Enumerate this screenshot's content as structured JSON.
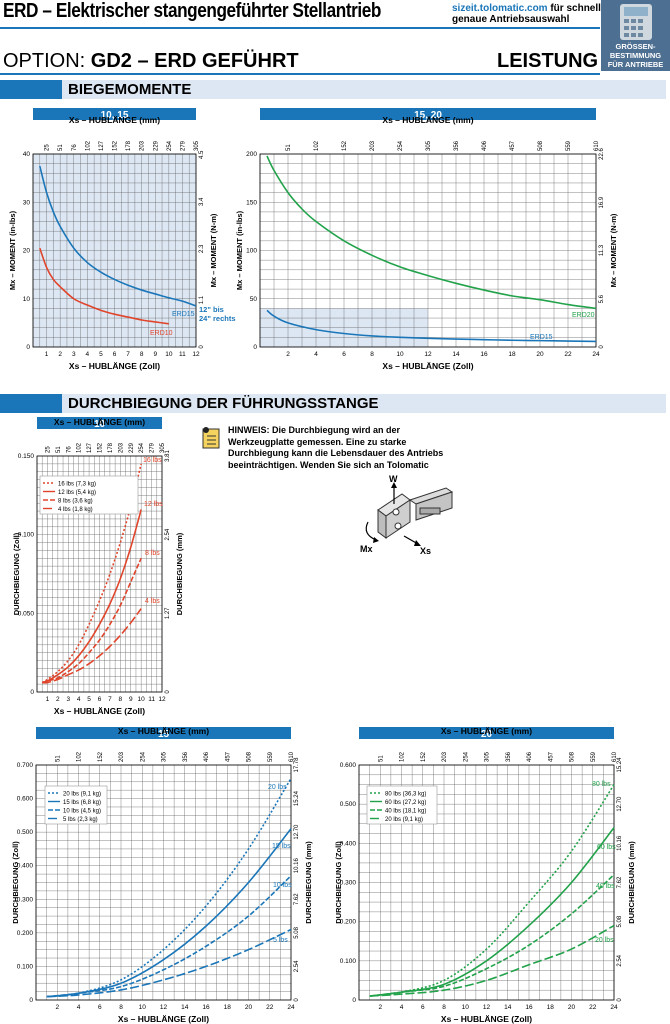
{
  "header": {
    "title": "ERD – Elektrischer stangengeführter Stellantrieb",
    "url": "sizeit.tolomatic.com",
    "url_suffix": " für schnelle,",
    "url_line2": "genaue Antriebsauswahl",
    "sizing_label": "GRÖSSEN-\nBESTIMMUNG\nFÜR ANTRIEBE",
    "option_prefix": "OPTION:",
    "option_name": "GD2 – ERD GEFÜHRT",
    "leistung": "LEISTUNG",
    "accent": "#1a76b8"
  },
  "sections": {
    "biegemomente": "BIEGEMOMENTE",
    "durchbiegung": "DURCHBIEGUNG DER FÜHRUNGSSTANGE"
  },
  "note": "HINWEIS: Die Durchbiegung wird an der Werkzeugplatte gemessen. Eine zu starke Durchbiegung kann die Lebensdauer des Antriebs beeinträchtigen. Wenden Sie sich an Tolomatic",
  "mech_labels": {
    "w": "W",
    "mx": "Mx",
    "xs": "Xs"
  },
  "chart_data": [
    {
      "type": "line",
      "banner": "10, 15",
      "xlabel": "Xs – HUBLÄNGE (Zoll)",
      "x2label": "Xs – HUBLÄNGE (mm)",
      "ylabel": "Mx – MOMENT (in-lbs)",
      "y2label": "Mx – MOMENT (N-m)",
      "xlim": [
        0,
        12
      ],
      "ylim": [
        0,
        40
      ],
      "xticks": [
        1,
        2,
        3,
        4,
        5,
        6,
        7,
        8,
        9,
        10,
        11,
        12
      ],
      "yticks": [
        0,
        10,
        20,
        30,
        40
      ],
      "x2ticks": [
        "25",
        "51",
        "76",
        "102",
        "127",
        "152",
        "178",
        "203",
        "229",
        "254",
        "279",
        "305"
      ],
      "y2ticks": [
        {
          "v": 0,
          "t": "0"
        },
        {
          "v": 9.72,
          "t": "1.1"
        },
        {
          "v": 20.35,
          "t": "2.3"
        },
        {
          "v": 30.09,
          "t": "3.4"
        },
        {
          "v": 39.82,
          "t": "4.5"
        }
      ],
      "shade": [
        0,
        12,
        0,
        40
      ],
      "annotation": "12\" bis\n24\" rechts",
      "series": [
        {
          "name": "ERD15",
          "color": "#1a76b8",
          "dash": "solid",
          "x": [
            0.5,
            1,
            1.5,
            2,
            3,
            4,
            5,
            6,
            7,
            8,
            9,
            10,
            11,
            12
          ],
          "values": [
            37.5,
            32,
            28,
            25,
            20.5,
            17.5,
            15.5,
            14,
            12.8,
            11.8,
            11,
            10.2,
            9.5,
            8.5
          ]
        },
        {
          "name": "ERD10",
          "color": "#e0452b",
          "dash": "solid",
          "x": [
            0.5,
            1,
            1.5,
            2,
            3,
            4,
            5,
            6,
            7,
            8,
            9,
            10
          ],
          "values": [
            20.5,
            16.5,
            14,
            12.5,
            10,
            8.7,
            7.6,
            6.8,
            6.2,
            5.6,
            5.2,
            4.8
          ]
        }
      ]
    },
    {
      "type": "line",
      "banner": "15, 20",
      "xlabel": "Xs – HUBLÄNGE (Zoll)",
      "x2label": "Xs – HUBLÄNGE (mm)",
      "ylabel": "Mx – MOMENT (in-lbs)",
      "y2label": "Mx – MOMENT (N-m)",
      "xlim": [
        0,
        24
      ],
      "ylim": [
        0,
        200
      ],
      "xticks": [
        2,
        4,
        6,
        8,
        10,
        12,
        14,
        16,
        18,
        20,
        22,
        24
      ],
      "yticks": [
        0,
        50,
        100,
        150,
        200
      ],
      "x2ticks": [
        "51",
        "102",
        "152",
        "203",
        "254",
        "305",
        "356",
        "406",
        "457",
        "508",
        "559",
        "610"
      ],
      "y2ticks": [
        {
          "v": 0,
          "t": "0"
        },
        {
          "v": 49.56,
          "t": "5.6"
        },
        {
          "v": 100.0,
          "t": "11.3"
        },
        {
          "v": 149.56,
          "t": "16.9"
        },
        {
          "v": 200,
          "t": "22.6"
        }
      ],
      "shade": [
        0,
        12,
        0,
        40
      ],
      "series": [
        {
          "name": "ERD20",
          "color": "#22a24a",
          "dash": "solid",
          "x": [
            0.5,
            1,
            2,
            3,
            4,
            6,
            8,
            10,
            12,
            14,
            16,
            18,
            20,
            22,
            24
          ],
          "values": [
            198,
            183,
            160,
            143,
            130,
            110,
            95,
            83,
            74,
            66,
            59,
            53,
            49,
            44,
            40
          ]
        },
        {
          "name": "ERD15",
          "color": "#1a76b8",
          "dash": "solid",
          "x": [
            0.5,
            1,
            2,
            4,
            6,
            8,
            10,
            12,
            14,
            16,
            18,
            20,
            22,
            24
          ],
          "values": [
            38,
            32,
            25,
            18,
            14,
            11.5,
            10,
            9,
            8.2,
            7.6,
            7,
            6.6,
            6.2,
            5.8
          ]
        }
      ]
    },
    {
      "type": "line",
      "banner": "10",
      "xlabel": "Xs – HUBLÄNGE (Zoll)",
      "x2label": "Xs – HUBLÄNGE (mm)",
      "ylabel": "DURCHBIEGUNG (Zoll)",
      "y2label": "DURCHBIEGUNG (mm)",
      "xlim": [
        0,
        12
      ],
      "ylim": [
        0,
        0.15
      ],
      "xticks": [
        1,
        2,
        3,
        4,
        5,
        6,
        7,
        8,
        9,
        10,
        11,
        12
      ],
      "yticks": [
        0,
        0.05,
        0.1,
        0.15
      ],
      "ytick_labels": [
        "0",
        "0.050",
        "0.100",
        "0.150"
      ],
      "x2ticks": [
        "25",
        "51",
        "76",
        "102",
        "127",
        "152",
        "178",
        "203",
        "229",
        "254",
        "279",
        "305"
      ],
      "y2ticks": [
        {
          "v": 0,
          "t": "0"
        },
        {
          "v": 0.05,
          "t": "1.27"
        },
        {
          "v": 0.1,
          "t": "2.54"
        },
        {
          "v": 0.15,
          "t": "3.81"
        }
      ],
      "legend": [
        "16 lbs (7,3 kg)",
        "12 lbs (5,4 kg)",
        "8 lbs (3,6 kg)",
        "4 lbs (1,8 kg)"
      ],
      "series": [
        {
          "name": "16 lbs",
          "color": "#e0452b",
          "dash": "2,2",
          "x": [
            0.5,
            1,
            2,
            3,
            4,
            5,
            6,
            7,
            8,
            9,
            10
          ],
          "values": [
            0.006,
            0.008,
            0.013,
            0.02,
            0.03,
            0.043,
            0.058,
            0.075,
            0.095,
            0.118,
            0.145
          ]
        },
        {
          "name": "12 lbs",
          "color": "#e0452b",
          "dash": "solid",
          "x": [
            0.5,
            1,
            2,
            3,
            4,
            5,
            6,
            7,
            8,
            9,
            10
          ],
          "values": [
            0.006,
            0.007,
            0.011,
            0.016,
            0.023,
            0.032,
            0.043,
            0.056,
            0.072,
            0.092,
            0.116
          ]
        },
        {
          "name": "8 lbs",
          "color": "#e0452b",
          "dash": "5,2",
          "x": [
            0.5,
            1,
            2,
            3,
            4,
            5,
            6,
            7,
            8,
            9,
            10
          ],
          "values": [
            0.006,
            0.007,
            0.009,
            0.013,
            0.018,
            0.025,
            0.033,
            0.043,
            0.055,
            0.07,
            0.085
          ]
        },
        {
          "name": "4 lbs",
          "color": "#e0452b",
          "dash": "9,3",
          "x": [
            0.5,
            1,
            2,
            3,
            4,
            5,
            6,
            7,
            8,
            9,
            10
          ],
          "values": [
            0.006,
            0.006,
            0.008,
            0.011,
            0.014,
            0.018,
            0.023,
            0.029,
            0.036,
            0.044,
            0.053
          ]
        }
      ]
    },
    {
      "type": "line",
      "banner": "15",
      "xlabel": "Xs – HUBLÄNGE (Zoll)",
      "x2label": "Xs – HUBLÄNGE (mm)",
      "ylabel": "DURCHBIEGUNG (Zoll)",
      "y2label": "DURCHBIEGUNG (mm)",
      "xlim": [
        0,
        24
      ],
      "ylim": [
        0,
        0.7
      ],
      "xticks": [
        2,
        4,
        6,
        8,
        10,
        12,
        14,
        16,
        18,
        20,
        22,
        24
      ],
      "yticks": [
        0,
        0.1,
        0.2,
        0.3,
        0.4,
        0.5,
        0.6,
        0.7
      ],
      "ytick_labels": [
        "0",
        "0.100",
        "0.200",
        "0.300",
        "0.400",
        "0.500",
        "0.600",
        "0.700"
      ],
      "x2ticks": [
        "51",
        "102",
        "152",
        "203",
        "254",
        "305",
        "356",
        "406",
        "457",
        "508",
        "559",
        "610"
      ],
      "y2ticks": [
        {
          "v": 0,
          "t": "0"
        },
        {
          "v": 0.1,
          "t": "2.54"
        },
        {
          "v": 0.2,
          "t": "5.08"
        },
        {
          "v": 0.3,
          "t": "7.62"
        },
        {
          "v": 0.4,
          "t": "10.16"
        },
        {
          "v": 0.5,
          "t": "12.70"
        },
        {
          "v": 0.6,
          "t": "15.24"
        },
        {
          "v": 0.7,
          "t": "17.78"
        }
      ],
      "legend": [
        "20 lbs (9,1 kg)",
        "15 lbs (6,8 kg)",
        "10 lbs (4,5 kg)",
        "5 lbs (2,3 kg)"
      ],
      "series": [
        {
          "name": "20 lbs",
          "color": "#1a76b8",
          "dash": "2,2",
          "x": [
            1,
            4,
            8,
            12,
            16,
            20,
            24
          ],
          "values": [
            0.01,
            0.02,
            0.06,
            0.15,
            0.28,
            0.45,
            0.66
          ]
        },
        {
          "name": "15 lbs",
          "color": "#1a76b8",
          "dash": "solid",
          "x": [
            1,
            4,
            8,
            12,
            16,
            20,
            24
          ],
          "values": [
            0.01,
            0.02,
            0.05,
            0.12,
            0.22,
            0.35,
            0.51
          ]
        },
        {
          "name": "10 lbs",
          "color": "#1a76b8",
          "dash": "5,2",
          "x": [
            1,
            4,
            8,
            12,
            16,
            20,
            24
          ],
          "values": [
            0.01,
            0.02,
            0.04,
            0.09,
            0.16,
            0.25,
            0.37
          ]
        },
        {
          "name": "5 lbs",
          "color": "#1a76b8",
          "dash": "9,3",
          "x": [
            1,
            4,
            8,
            12,
            16,
            20,
            24
          ],
          "values": [
            0.01,
            0.015,
            0.03,
            0.06,
            0.1,
            0.15,
            0.21
          ]
        }
      ]
    },
    {
      "type": "line",
      "banner": "20",
      "xlabel": "Xs – HUBLÄNGE (Zoll)",
      "x2label": "Xs – HUBLÄNGE (mm)",
      "ylabel": "DURCHBIEGUNG (Zoll)",
      "y2label": "DURCHBIEGUNG (mm)",
      "xlim": [
        0,
        24
      ],
      "ylim": [
        0,
        0.6
      ],
      "xticks": [
        2,
        4,
        6,
        8,
        10,
        12,
        14,
        16,
        18,
        20,
        22,
        24
      ],
      "yticks": [
        0,
        0.1,
        0.2,
        0.3,
        0.4,
        0.5,
        0.6
      ],
      "ytick_labels": [
        "0",
        "0.100",
        "0.200",
        "0.300",
        "0.400",
        "0.500",
        "0.600"
      ],
      "x2ticks": [
        "51",
        "102",
        "152",
        "203",
        "254",
        "305",
        "356",
        "406",
        "457",
        "508",
        "559",
        "610"
      ],
      "y2ticks": [
        {
          "v": 0,
          "t": "0"
        },
        {
          "v": 0.1,
          "t": "2.54"
        },
        {
          "v": 0.2,
          "t": "5.08"
        },
        {
          "v": 0.3,
          "t": "7.62"
        },
        {
          "v": 0.4,
          "t": "10.16"
        },
        {
          "v": 0.5,
          "t": "12.70"
        },
        {
          "v": 0.6,
          "t": "15.24"
        }
      ],
      "legend": [
        "80 lbs (36,3 kg)",
        "60 lbs (27,2 kg)",
        "40 lbs (18,1 kg)",
        "20 lbs (9,1 kg)"
      ],
      "series": [
        {
          "name": "80 lbs",
          "color": "#22a24a",
          "dash": "2,2",
          "x": [
            1,
            4,
            8,
            12,
            16,
            20,
            24
          ],
          "values": [
            0.01,
            0.02,
            0.05,
            0.13,
            0.25,
            0.38,
            0.55
          ]
        },
        {
          "name": "60 lbs",
          "color": "#22a24a",
          "dash": "solid",
          "x": [
            1,
            4,
            8,
            12,
            16,
            20,
            24
          ],
          "values": [
            0.01,
            0.02,
            0.04,
            0.1,
            0.19,
            0.3,
            0.44
          ]
        },
        {
          "name": "40 lbs",
          "color": "#22a24a",
          "dash": "5,2",
          "x": [
            1,
            4,
            8,
            12,
            16,
            20,
            24
          ],
          "values": [
            0.01,
            0.02,
            0.035,
            0.08,
            0.14,
            0.22,
            0.32
          ]
        },
        {
          "name": "20 lbs",
          "color": "#22a24a",
          "dash": "9,3",
          "x": [
            1,
            4,
            8,
            12,
            16,
            20,
            24
          ],
          "values": [
            0.01,
            0.015,
            0.025,
            0.05,
            0.09,
            0.13,
            0.19
          ]
        }
      ]
    }
  ]
}
